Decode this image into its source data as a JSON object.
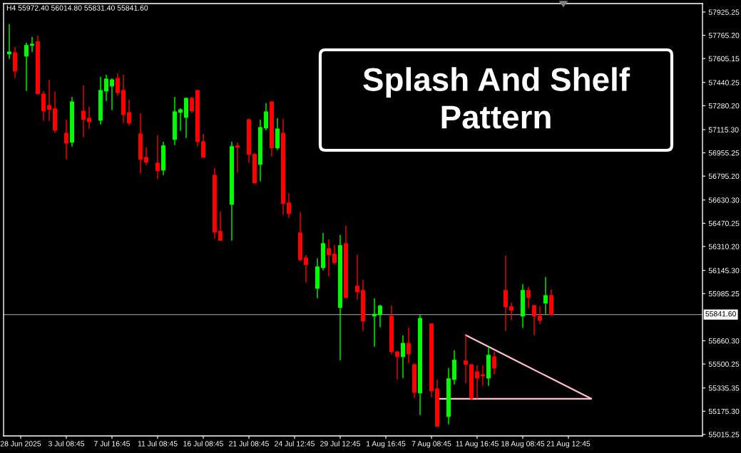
{
  "chart_data": {
    "type": "candlestick",
    "title": "Splash And Shelf Pattern",
    "subtitle": "H4 55972.40 56014.80 55831.40 55841.60",
    "categories": [
      null,
      null,
      "28 Jun 2025",
      null,
      null,
      null,
      null,
      null,
      null,
      null,
      "3 Jul 08:45",
      null,
      null,
      null,
      null,
      null,
      null,
      null,
      "7 Jul 16:45",
      null,
      null,
      null,
      null,
      null,
      null,
      null,
      "11 Jul 08:45",
      null,
      null,
      null,
      null,
      null,
      null,
      null,
      "16 Jul 08:45",
      null,
      null,
      null,
      null,
      null,
      null,
      null,
      "21 Jul 08:45",
      null,
      null,
      null,
      null,
      null,
      null,
      null,
      "24 Jul 12:45",
      null,
      null,
      null,
      null,
      null,
      null,
      null,
      "29 Jul 12:45",
      null,
      null,
      null,
      null,
      null,
      null,
      null,
      "1 Aug 16:45",
      null,
      null,
      null,
      null,
      null,
      null,
      null,
      "7 Aug 08:45",
      null,
      null,
      null,
      null,
      null,
      null,
      null,
      "11 Aug 16:45",
      null,
      null,
      null,
      null,
      null,
      null,
      null,
      "18 Aug 08:45",
      null,
      null,
      null,
      null,
      null,
      null,
      null,
      "21 Aug 12:45",
      null,
      null,
      null,
      null,
      null,
      null,
      null,
      null,
      null,
      null,
      null,
      null,
      null,
      null,
      null,
      null,
      null,
      null,
      null,
      null,
      null,
      null,
      null
    ],
    "ohlc": [
      [
        57637,
        57842,
        57603,
        57650
      ],
      [
        57645,
        57685,
        57470,
        57519
      ],
      null,
      [
        57622,
        57714,
        57382,
        57695
      ],
      [
        57696,
        57754,
        57652,
        57704
      ],
      [
        57721,
        57763,
        57357,
        57362
      ],
      [
        57361,
        57381,
        57176,
        57245
      ],
      [
        57282,
        57459,
        57176,
        57254
      ],
      [
        57259,
        57376,
        57092,
        57112
      ],
      null,
      [
        57091,
        57184,
        56911,
        57024
      ],
      [
        57029,
        57341,
        56999,
        57307
      ],
      null,
      [
        57243,
        57420,
        57063,
        57186
      ],
      [
        57194,
        57273,
        57122,
        57171
      ],
      null,
      [
        57181,
        57479,
        57151,
        57385
      ],
      [
        57382,
        57493,
        57313,
        57464
      ],
      [
        57416,
        57469,
        57250,
        57459
      ],
      [
        57469,
        57503,
        57348,
        57371
      ],
      [
        57385,
        57493,
        57161,
        57220
      ],
      [
        57233,
        57322,
        57142,
        57161
      ],
      null,
      [
        57086,
        57228,
        56813,
        56911
      ],
      [
        56924,
        56993,
        56872,
        56891
      ],
      null,
      [
        56885,
        57076,
        56774,
        56832
      ],
      [
        56837,
        57032,
        56803,
        57003
      ],
      null,
      [
        57048,
        57341,
        57009,
        57238
      ],
      [
        57235,
        57263,
        57107,
        57253
      ],
      [
        57200,
        57336,
        57058,
        57331
      ],
      [
        57331,
        57341,
        57230,
        57245
      ],
      [
        57385,
        57390,
        56999,
        57034
      ],
      [
        57032,
        57086,
        56921,
        56926
      ],
      null,
      [
        56801,
        56850,
        56366,
        56410
      ],
      [
        56414,
        56551,
        56350,
        56352
      ],
      null,
      [
        56602,
        57032,
        56351,
        56998
      ],
      [
        57003,
        57027,
        56818,
        56994
      ],
      null,
      [
        57184,
        57190,
        56886,
        56945
      ],
      [
        56944,
        56954,
        56745,
        56749
      ],
      [
        56876,
        57184,
        56759,
        57130
      ],
      [
        57127,
        57297,
        57112,
        57238
      ],
      [
        57307,
        57312,
        56930,
        56989
      ],
      [
        56989,
        57194,
        56975,
        57120
      ],
      [
        57091,
        57189,
        56528,
        56607
      ],
      [
        56610,
        56679,
        56508,
        56538
      ],
      null,
      [
        56404,
        56546,
        56209,
        56219
      ],
      [
        56232,
        56252,
        56062,
        56185
      ],
      null,
      [
        56023,
        56228,
        55954,
        56169
      ],
      [
        56165,
        56404,
        56146,
        56330
      ],
      [
        56296,
        56360,
        56106,
        56253
      ],
      [
        56257,
        56321,
        56185,
        56199
      ],
      [
        55890,
        56389,
        55526,
        56316
      ],
      [
        56330,
        56453,
        55954,
        55959
      ],
      null,
      [
        56036,
        56252,
        55944,
        55998
      ],
      [
        56007,
        56080,
        55728,
        55797
      ],
      null,
      [
        55831,
        55952,
        55620,
        55843
      ],
      [
        55841,
        55908,
        55753,
        55899
      ],
      null,
      [
        55830,
        55903,
        55566,
        55586
      ],
      [
        55584,
        55590,
        55394,
        55551
      ],
      [
        55551,
        55697,
        55404,
        55643
      ],
      [
        55643,
        55751,
        55507,
        55571
      ],
      [
        55496,
        55506,
        55267,
        55306
      ],
      [
        55301,
        55839,
        55149,
        55815
      ],
      null,
      [
        55776,
        55780,
        55272,
        55316
      ],
      [
        55329,
        55393,
        55068,
        55071
      ],
      null,
      [
        55139,
        55472,
        55085,
        55398
      ],
      [
        55394,
        55594,
        55360,
        55526
      ],
      null,
      [
        55521,
        55699,
        55370,
        55498
      ],
      [
        55496,
        55501,
        55255,
        55265
      ],
      [
        55447,
        55491,
        55261,
        55404
      ],
      [
        55427,
        55491,
        55350,
        55419
      ],
      [
        55404,
        55618,
        55350,
        55560
      ],
      [
        55550,
        55584,
        55429,
        55473
      ],
      null,
      [
        56007,
        56247,
        55728,
        55895
      ],
      [
        55894,
        55923,
        55802,
        55871
      ],
      null,
      [
        55831,
        56051,
        55748,
        56007
      ],
      [
        56007,
        56031,
        55885,
        55959
      ],
      [
        55903,
        55908,
        55699,
        55831
      ],
      [
        55830,
        55899,
        55777,
        55802
      ],
      [
        55920,
        56100,
        55845,
        55972
      ],
      [
        55972.4,
        56014.8,
        55831.4,
        55841.6
      ],
      null,
      null,
      null,
      null,
      null,
      null,
      null,
      null,
      null,
      null,
      null,
      null,
      null,
      null,
      null,
      null,
      null,
      null,
      null,
      null,
      null,
      null,
      null,
      null,
      null,
      null
    ],
    "colors": [
      "#00ff00",
      "#ff0000",
      null,
      "#00ff00",
      "#00ff00",
      "#ff0000",
      "#ff0000",
      "#ff0000",
      "#ff0000",
      null,
      "#ff0000",
      "#00ff00",
      null,
      "#ff0000",
      "#ff0000",
      null,
      "#00ff00",
      "#00ff00",
      "#00ff00",
      "#ff0000",
      "#ff0000",
      "#ff0000",
      null,
      "#ff0000",
      "#ff0000",
      null,
      "#ff0000",
      "#00ff00",
      null,
      "#00ff00",
      "#00ff00",
      "#00ff00",
      "#ff0000",
      "#ff0000",
      "#ff0000",
      null,
      "#ff0000",
      "#ff0000",
      null,
      "#00ff00",
      "#ff0000",
      null,
      "#ff0000",
      "#ff0000",
      "#00ff00",
      "#00ff00",
      "#ff0000",
      "#00ff00",
      "#ff0000",
      "#ff0000",
      null,
      "#ff0000",
      "#ff0000",
      null,
      "#00ff00",
      "#00ff00",
      "#ff0000",
      "#ff0000",
      "#00ff00",
      "#ff0000",
      null,
      "#ff0000",
      "#ff0000",
      null,
      "#00ff00",
      "#00ff00",
      null,
      "#ff0000",
      "#ff0000",
      "#00ff00",
      "#ff0000",
      "#ff0000",
      "#00ff00",
      null,
      "#ff0000",
      "#ff0000",
      null,
      "#00ff00",
      "#00ff00",
      null,
      "#ff0000",
      "#ff0000",
      "#ff0000",
      "#ff0000",
      "#00ff00",
      "#ff0000",
      null,
      "#ff0000",
      "#ff0000",
      null,
      "#00ff00",
      "#ff0000",
      "#ff0000",
      "#ff0000",
      "#00ff00",
      "#ff0000",
      null,
      null,
      null,
      null,
      null,
      null,
      null,
      null,
      null,
      null,
      null,
      null,
      null,
      null,
      null,
      null,
      null,
      null,
      null,
      null,
      null,
      null,
      null,
      null,
      null,
      null
    ],
    "series": [
      {
        "type": "line",
        "color": "#ffc0cb",
        "values": [
          null,
          null,
          null,
          null,
          null,
          null,
          null,
          null,
          null,
          null,
          null,
          null,
          null,
          null,
          null,
          null,
          null,
          null,
          null,
          null,
          null,
          null,
          null,
          null,
          null,
          null,
          null,
          null,
          null,
          null,
          null,
          null,
          null,
          null,
          null,
          null,
          null,
          null,
          null,
          null,
          null,
          null,
          null,
          null,
          null,
          null,
          null,
          null,
          null,
          null,
          null,
          null,
          null,
          null,
          null,
          null,
          null,
          null,
          null,
          null,
          null,
          null,
          null,
          null,
          null,
          null,
          null,
          null,
          null,
          null,
          null,
          null,
          null,
          null,
          null,
          55261,
          null,
          null,
          null,
          null,
          null,
          null,
          null,
          null,
          null,
          null,
          null,
          null,
          null,
          null,
          null,
          null,
          null,
          null,
          null,
          null,
          null,
          null,
          null,
          null,
          null,
          null,
          55261,
          null,
          null,
          null,
          null,
          null,
          null,
          null,
          null,
          null,
          null,
          null,
          null,
          null,
          null,
          null,
          null,
          null,
          null,
          null
        ]
      },
      {
        "type": "line",
        "color": "#ffc0cb",
        "values": [
          null,
          null,
          null,
          null,
          null,
          null,
          null,
          null,
          null,
          null,
          null,
          null,
          null,
          null,
          null,
          null,
          null,
          null,
          null,
          null,
          null,
          null,
          null,
          null,
          null,
          null,
          null,
          null,
          null,
          null,
          null,
          null,
          null,
          null,
          null,
          null,
          null,
          null,
          null,
          null,
          null,
          null,
          null,
          null,
          null,
          null,
          null,
          null,
          null,
          null,
          null,
          null,
          null,
          null,
          null,
          null,
          null,
          null,
          null,
          null,
          null,
          null,
          null,
          null,
          null,
          null,
          null,
          null,
          null,
          null,
          null,
          null,
          null,
          null,
          null,
          null,
          null,
          null,
          null,
          null,
          55699,
          null,
          null,
          null,
          null,
          null,
          null,
          null,
          null,
          null,
          null,
          null,
          null,
          null,
          null,
          null,
          null,
          null,
          null,
          null,
          null,
          null,
          55261,
          null,
          null,
          null,
          null,
          null,
          null,
          null,
          null,
          null,
          null,
          null,
          null,
          null,
          null,
          null,
          null,
          null,
          null,
          null
        ]
      }
    ],
    "ylim": [
      55005,
      57984
    ],
    "yticks": [
      {
        "value": 57925.25,
        "label": "57925.25"
      },
      {
        "value": 57765.2,
        "label": "57765.20"
      },
      {
        "value": 57605.15,
        "label": "57605.15"
      },
      {
        "value": 57440.25,
        "label": "57440.25"
      },
      {
        "value": 57280.2,
        "label": "57280.20"
      },
      {
        "value": 57115.3,
        "label": "57115.30"
      },
      {
        "value": 56955.25,
        "label": "56955.25"
      },
      {
        "value": 56795.2,
        "label": "56795.20"
      },
      {
        "value": 56630.3,
        "label": "56630.30"
      },
      {
        "value": 56470.25,
        "label": "56470.25"
      },
      {
        "value": 56310.2,
        "label": "56310.20"
      },
      {
        "value": 56145.3,
        "label": "56145.30"
      },
      {
        "value": 55985.25,
        "label": "55985.25"
      },
      {
        "value": 55660.3,
        "label": "55660.30"
      },
      {
        "value": 55500.25,
        "label": "55500.25"
      },
      {
        "value": 55335.35,
        "label": "55335.35"
      },
      {
        "value": 55175.3,
        "label": "55175.30"
      },
      {
        "value": 55015.25,
        "label": "55015.25"
      }
    ],
    "ref_lines": [
      {
        "axis": "y",
        "value": 55841.6,
        "label": "55841.60",
        "color": "#8a8a8a"
      }
    ]
  }
}
